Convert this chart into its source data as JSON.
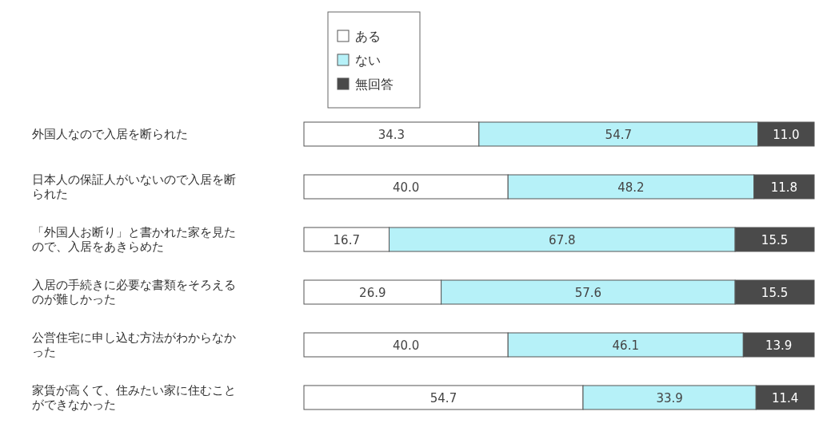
{
  "chart_data": {
    "type": "bar",
    "orientation": "horizontal",
    "stacked": true,
    "legend": "top",
    "categories": [
      "外国人なので入居を断られた",
      "日本人の保証人がいないので入居を断られた",
      "「外国人お断り」と書かれた家を見たので、入居をあきらめた",
      "入居の手続きに必要な書類をそろえるのが難しかった",
      "公営住宅に申し込む方法がわからなかった",
      "家賃が高くて、住みたい家に住むことができなかった"
    ],
    "series": [
      {
        "name": "ある",
        "color": "#ffffff",
        "values": [
          34.3,
          40.0,
          16.7,
          26.9,
          40.0,
          54.7
        ],
        "value_labels": [
          "34.3",
          "40.0",
          "16.7",
          "26.9",
          "40.0",
          "54.7"
        ]
      },
      {
        "name": "ない",
        "color": "#b6f1f8",
        "values": [
          54.7,
          48.2,
          67.8,
          57.6,
          46.1,
          33.9
        ],
        "value_labels": [
          "54.7",
          "48.2",
          "67.8",
          "57.6",
          "46.1",
          "33.9"
        ]
      },
      {
        "name": "無回答",
        "color": "#4a4a4a",
        "values": [
          11.0,
          11.8,
          15.5,
          15.5,
          13.9,
          11.4
        ],
        "value_labels": [
          "11.0",
          "11.8",
          "15.5",
          "15.5",
          "13.9",
          "11.4"
        ]
      }
    ]
  }
}
